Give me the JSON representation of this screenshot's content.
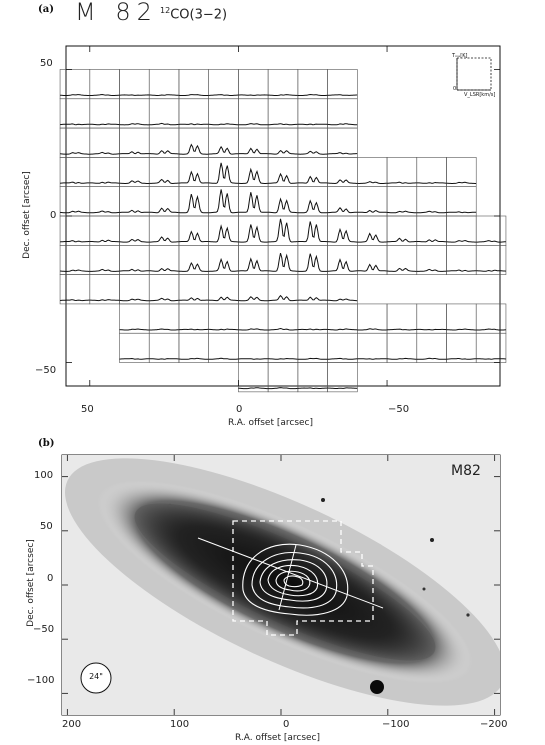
{
  "panel_a": {
    "tag": "(a)",
    "source": "M 82",
    "line_iso": "12",
    "line_name": "CO(3−2)",
    "xlabel": "R.A. offset [arcsec]",
    "ylabel": "Dec. offset [arcsec]",
    "xticks": [
      "50",
      "0",
      "−50"
    ],
    "yticks": [
      "50",
      "0",
      "−50"
    ],
    "inset": {
      "top_label": "Tₘₑ[K]",
      "bottom_label": "V_LSR[km/s]",
      "axis_note": "0"
    }
  },
  "panel_b": {
    "tag": "(b)",
    "source": "M82",
    "beam_label": "24\"",
    "xlabel": "R.A. offset [arcsec]",
    "ylabel": "Dec. offset [arcsec]",
    "xticks": [
      "200",
      "100",
      "0",
      "−100",
      "−200"
    ],
    "yticks": [
      "100",
      "50",
      "0",
      "−50",
      "−100"
    ]
  },
  "colors": {
    "ink": "#111111",
    "bg": "#ffffff"
  },
  "chart_data": [
    {
      "type": "other",
      "description_kind": "spectral grid map",
      "xlim": [
        58,
        -88
      ],
      "ylim": [
        -58,
        58
      ],
      "grid_step_arcsec": 10,
      "rows": [
        {
          "dec": 45,
          "ra": [
            55,
            45,
            35,
            25,
            15,
            5,
            -5,
            -15,
            -25,
            -35
          ],
          "peak": [
            0.02,
            0.02,
            0.02,
            0.02,
            0.02,
            0.02,
            0.02,
            0.02,
            0.02,
            0.02
          ]
        },
        {
          "dec": 35,
          "ra": [
            55,
            45,
            35,
            25,
            15,
            5,
            -5,
            -15,
            -25,
            -35
          ],
          "peak": [
            0.03,
            0.03,
            0.03,
            0.04,
            0.04,
            0.03,
            0.03,
            0.03,
            0.03,
            0.03
          ]
        },
        {
          "dec": 25,
          "ra": [
            55,
            45,
            35,
            25,
            15,
            5,
            -5,
            -15,
            -25,
            -35
          ],
          "peak": [
            0.05,
            0.05,
            0.1,
            0.15,
            0.4,
            0.3,
            0.25,
            0.15,
            0.1,
            0.05
          ]
        },
        {
          "dec": 15,
          "ra": [
            55,
            45,
            35,
            25,
            15,
            5,
            -5,
            -15,
            -25,
            -35,
            -45,
            -55,
            -65,
            -75
          ],
          "peak": [
            0.05,
            0.05,
            0.1,
            0.15,
            0.5,
            0.9,
            0.6,
            0.4,
            0.3,
            0.15,
            0.05,
            0.04,
            0.03,
            0.03
          ]
        },
        {
          "dec": 5,
          "ra": [
            55,
            45,
            35,
            25,
            15,
            5,
            -5,
            -15,
            -25,
            -35,
            -45,
            -55,
            -65,
            -75
          ],
          "peak": [
            0.05,
            0.05,
            0.1,
            0.2,
            0.8,
            1.0,
            0.9,
            0.6,
            0.5,
            0.2,
            0.1,
            0.05,
            0.04,
            0.03
          ]
        },
        {
          "dec": -5,
          "ra": [
            55,
            45,
            35,
            25,
            15,
            5,
            -5,
            -15,
            -25,
            -35,
            -45,
            -55,
            -65,
            -75,
            -85
          ],
          "peak": [
            0.05,
            0.08,
            0.1,
            0.2,
            0.45,
            0.7,
            0.75,
            1.0,
            0.9,
            0.55,
            0.35,
            0.15,
            0.1,
            0.05,
            0.04
          ]
        },
        {
          "dec": -15,
          "ra": [
            55,
            45,
            35,
            25,
            15,
            5,
            -5,
            -15,
            -25,
            -35,
            -45,
            -55,
            -65,
            -75,
            -85
          ],
          "peak": [
            0.04,
            0.06,
            0.08,
            0.12,
            0.35,
            0.5,
            0.55,
            0.8,
            0.75,
            0.5,
            0.3,
            0.12,
            0.06,
            0.05,
            0.04
          ]
        },
        {
          "dec": -25,
          "ra": [
            55,
            45,
            35,
            25,
            15,
            5,
            -5,
            -15,
            -25,
            -35
          ],
          "peak": [
            0.03,
            0.04,
            0.05,
            0.08,
            0.12,
            0.15,
            0.15,
            0.2,
            0.15,
            0.06
          ]
        },
        {
          "dec": -35,
          "ra": [
            35,
            25,
            15,
            5,
            -5,
            -15,
            -25,
            -35,
            -45,
            -55,
            -65,
            -75,
            -85
          ],
          "peak": [
            0.02,
            0.02,
            0.03,
            0.03,
            0.03,
            0.04,
            0.04,
            0.03,
            0.03,
            0.02,
            0.02,
            0.02,
            0.02
          ]
        },
        {
          "dec": -45,
          "ra": [
            35,
            25,
            15,
            5,
            -5,
            -15,
            -25,
            -35,
            -45,
            -55,
            -65,
            -75,
            -85
          ],
          "peak": [
            0.02,
            0.02,
            0.02,
            0.02,
            0.02,
            0.02,
            0.02,
            0.02,
            0.02,
            0.02,
            0.02,
            0.02,
            0.02
          ]
        },
        {
          "dec": -55,
          "ra": [
            -5,
            -15,
            -25,
            -35
          ],
          "peak": [
            0.02,
            0.02,
            0.02,
            0.02
          ]
        }
      ]
    },
    {
      "type": "other",
      "description_kind": "optical image with contours",
      "xlim": [
        205,
        -205
      ],
      "ylim": [
        -120,
        120
      ]
    }
  ]
}
